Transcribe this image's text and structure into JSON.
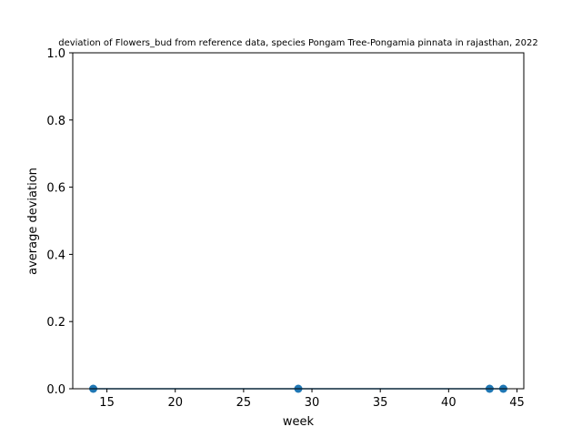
{
  "chart_data": {
    "type": "line",
    "title": "deviation of Flowers_bud from reference data, species Pongam Tree-Pongamia pinnata in rajasthan, 2022",
    "xlabel": "week",
    "ylabel": "average deviation",
    "xlim": [
      12.5,
      45.5
    ],
    "ylim": [
      0,
      1
    ],
    "x_ticks": [
      15,
      20,
      25,
      30,
      35,
      40,
      45
    ],
    "y_ticks": [
      0.0,
      0.2,
      0.4,
      0.6,
      0.8,
      1.0
    ],
    "x_tick_labels": [
      "15",
      "20",
      "25",
      "30",
      "35",
      "40",
      "45"
    ],
    "y_tick_labels": [
      "0.0",
      "0.2",
      "0.4",
      "0.6",
      "0.8",
      "1.0"
    ],
    "grid": false,
    "legend": "none",
    "series": [
      {
        "color": "#1f77b4",
        "marker": "circle",
        "x": [
          14,
          29,
          43,
          44
        ],
        "y": [
          0,
          0,
          0,
          0
        ]
      }
    ]
  }
}
